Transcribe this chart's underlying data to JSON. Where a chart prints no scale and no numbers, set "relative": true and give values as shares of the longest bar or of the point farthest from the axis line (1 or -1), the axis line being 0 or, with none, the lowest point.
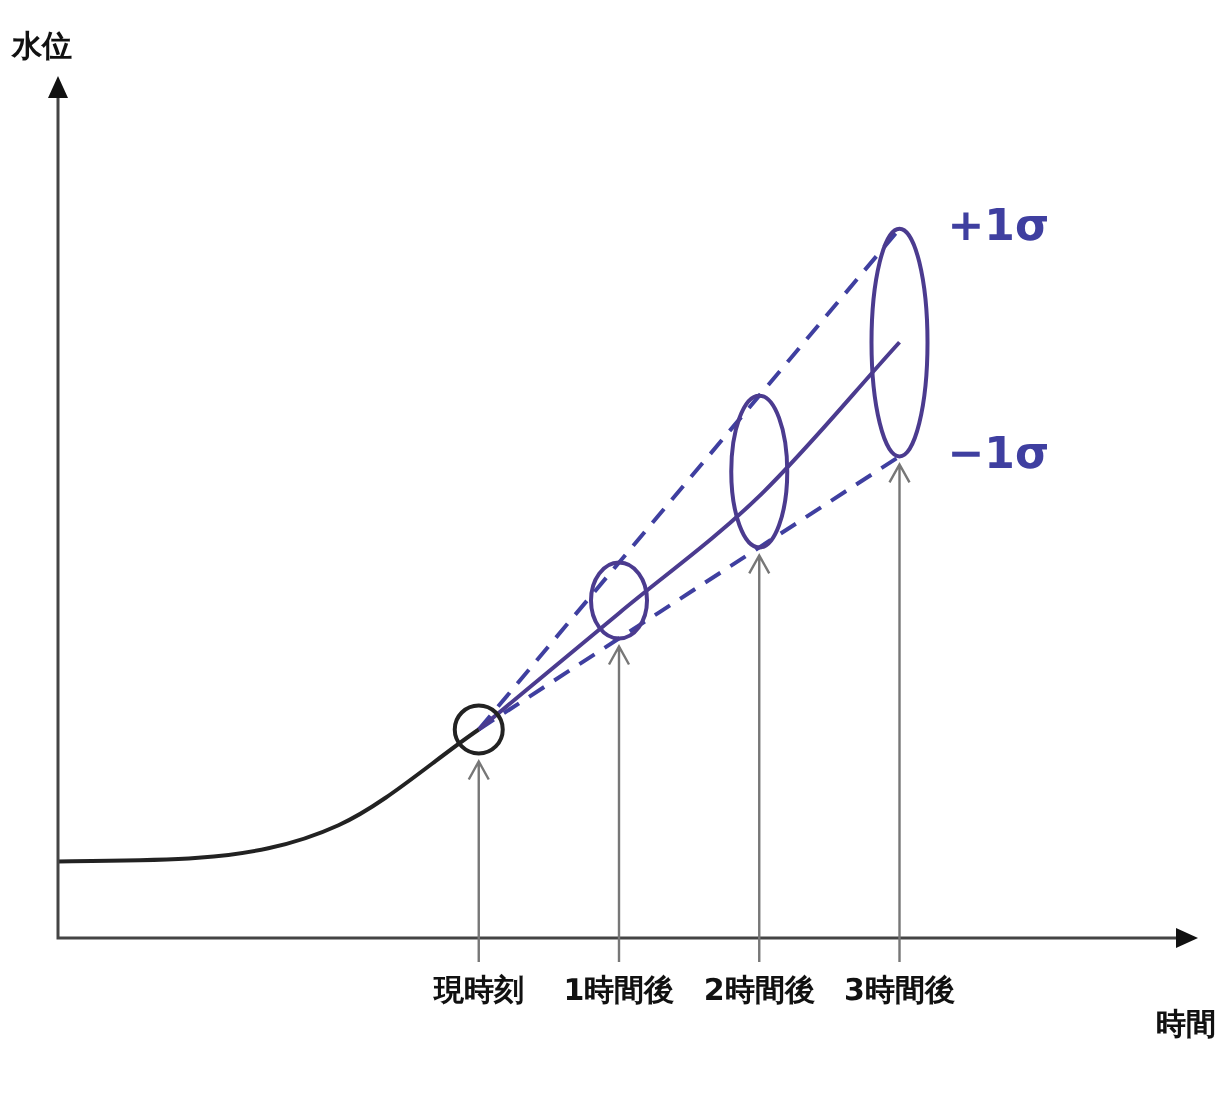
{
  "chart_data": {
    "type": "line",
    "relative": true,
    "annotations": [
      "水位"
    ],
    "xlabel": "時間",
    "tick_labels": "x",
    "legend": false,
    "marker": "none",
    "categories": [
      null,
      null,
      null,
      "現時刻",
      "1時間後",
      "2時間後",
      "3時間後",
      null,
      null
    ],
    "series": [
      {
        "color": "#222222",
        "values": [
          0.108,
          0.113,
          0.159,
          0.294,
          null,
          null,
          null,
          null,
          null
        ],
        "line_style": "solid"
      },
      {
        "color": "#4b3b8f",
        "values": [
          null,
          null,
          null,
          0.294,
          0.458,
          0.623,
          0.84,
          null,
          null
        ],
        "line_style": "solid"
      },
      {
        "name": "+1σ",
        "color": "#3f3fa0",
        "values": [
          null,
          null,
          null,
          0.294,
          null,
          null,
          1.0,
          null,
          null
        ],
        "line_style": "dashed"
      },
      {
        "name": "−1σ",
        "color": "#3f3fa0",
        "values": [
          null,
          null,
          null,
          0.294,
          null,
          null,
          0.679,
          null,
          null
        ],
        "line_style": "dashed"
      }
    ]
  }
}
